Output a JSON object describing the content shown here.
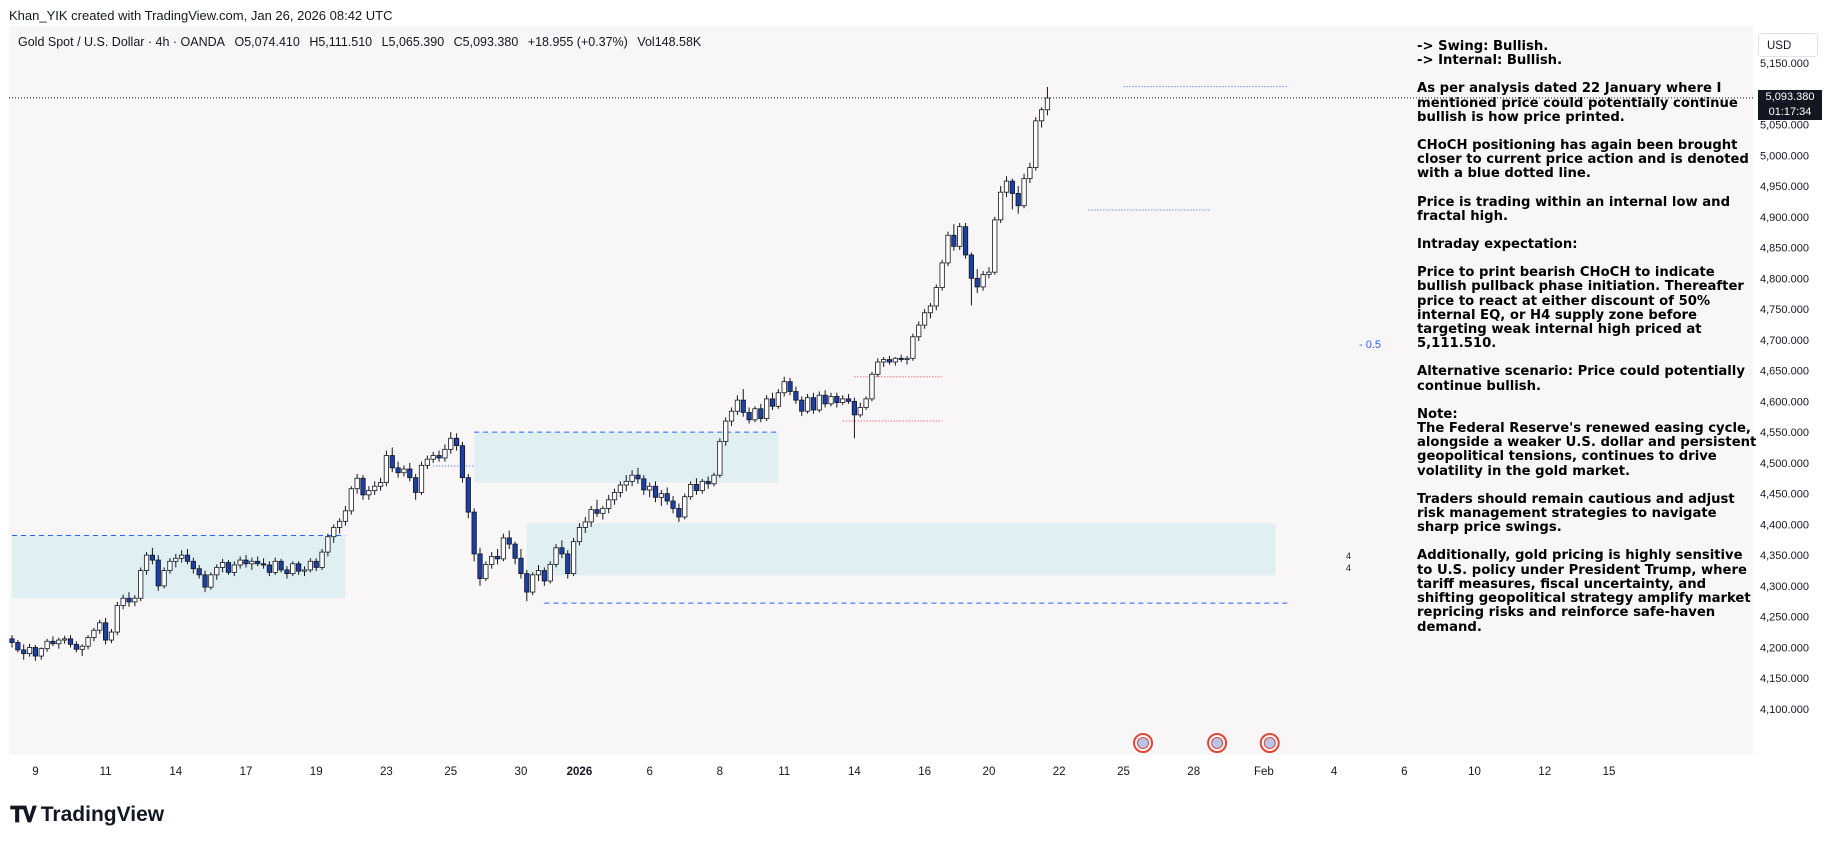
{
  "header": {
    "attribution": "Khan_YIK created with TradingView.com, Jan 26, 2026 08:42 UTC"
  },
  "symbol": {
    "name": "Gold Spot / U.S. Dollar · 4h · OANDA",
    "open": "O5,074.410",
    "high": "H5,111.510",
    "low": "L5,065.390",
    "close": "C5,093.380",
    "change": "+18.955 (+0.37%)",
    "volume": "Vol148.58K"
  },
  "currency_button": "USD",
  "last_price": {
    "price": "5,093.380",
    "countdown": "01:17:34"
  },
  "fib_label": "0.5",
  "zone_labels": [
    "4",
    "4"
  ],
  "notes": [
    "-> Swing:  Bullish.\n-> Internal:  Bullish.",
    "As per analysis dated 22 January where I mentioned price could potentially continue bullish is how price printed.",
    "CHoCH positioning has again been brought closer to current price action and is denoted with a blue dotted line.",
    "Price is trading within an internal low and fractal high.",
    "Intraday expectation:",
    "Price to print bearish CHoCH to indicate bullish pullback phase initiation.  Thereafter price to react at either discount of 50% internal EQ, or H4 supply zone before targeting weak internal high priced at 5,111.510.",
    "Alternative scenario:  Price could potentially continue bullish.",
    "Note:\nThe Federal Reserve's renewed easing cycle, alongside a weaker U.S. dollar and persistent geopolitical tensions, continues to drive volatility in the gold market.",
    "Traders should remain cautious and adjust risk management strategies to navigate sharp price swings.",
    "Additionally, gold pricing is highly sensitive to U.S. policy under President Trump, where tariff measures, fiscal uncertainty, and shifting geopolitical strategy amplify market repricing risks and reinforce safe-haven demand."
  ],
  "footer": {
    "brand": "TradingView"
  },
  "colors": {
    "bull": "#ffffff",
    "bear": "#1c3fa6",
    "wick": "#131722",
    "zone": "#dcedf1",
    "dashed": "#2962ff",
    "red_dotted": "#f23645",
    "background": "#f8f6f7"
  },
  "chart_data": {
    "type": "candlestick",
    "interval": "4h",
    "y_ticks": [
      4100,
      4150,
      4200,
      4250,
      4300,
      4350,
      4400,
      4450,
      4500,
      4550,
      4600,
      4650,
      4700,
      4750,
      4800,
      4850,
      4900,
      4950,
      5000,
      5050,
      5100,
      5150
    ],
    "y_tick_labels": [
      "4,100.000",
      "4,150.000",
      "4,200.000",
      "4,250.000",
      "4,300.000",
      "4,350.000",
      "4,400.000",
      "4,450.000",
      "4,500.000",
      "4,550.000",
      "4,600.000",
      "4,650.000",
      "4,700.000",
      "4,750.000",
      "4,800.000",
      "4,850.000",
      "4,900.000",
      "4,950.000",
      "5,000.000",
      "5,050.000",
      "5,100.000",
      "5,150.000"
    ],
    "ylim": [
      4075,
      5175
    ],
    "x_ticks": [
      {
        "label": "9",
        "bar": 4
      },
      {
        "label": "11",
        "bar": 16
      },
      {
        "label": "14",
        "bar": 28
      },
      {
        "label": "17",
        "bar": 40
      },
      {
        "label": "19",
        "bar": 52
      },
      {
        "label": "23",
        "bar": 64
      },
      {
        "label": "25",
        "bar": 75
      },
      {
        "label": "30",
        "bar": 87
      },
      {
        "label": "2026",
        "bar": 97
      },
      {
        "label": "6",
        "bar": 109
      },
      {
        "label": "8",
        "bar": 121
      },
      {
        "label": "11",
        "bar": 132
      },
      {
        "label": "14",
        "bar": 144
      },
      {
        "label": "16",
        "bar": 156
      },
      {
        "label": "20",
        "bar": 167
      },
      {
        "label": "22",
        "bar": 179
      },
      {
        "label": "25",
        "bar": 190
      },
      {
        "label": "28",
        "bar": 202
      },
      {
        "label": "Feb",
        "bar": 214
      },
      {
        "label": "4",
        "bar": 226
      },
      {
        "label": "6",
        "bar": 238
      },
      {
        "label": "10",
        "bar": 250
      },
      {
        "label": "12",
        "bar": 262
      },
      {
        "label": "15",
        "bar": 273
      }
    ],
    "last_price": 5093.38,
    "zones": [
      {
        "x0": 0,
        "x1": 57,
        "y0": 4280,
        "y1": 4382
      },
      {
        "x0": 79,
        "x1": 131,
        "y0": 4468,
        "y1": 4550
      },
      {
        "x0": 88,
        "x1": 216,
        "y0": 4317,
        "y1": 4402
      }
    ],
    "dashed_lines": [
      {
        "x0": 0,
        "x1": 57,
        "y": 4382
      },
      {
        "x0": 79,
        "x1": 131,
        "y": 4550
      },
      {
        "x0": 91,
        "x1": 218,
        "y": 4272
      }
    ],
    "choch_lines": [
      {
        "x0": 190,
        "x1": 218,
        "y": 5111.5
      },
      {
        "x0": 184,
        "x1": 205,
        "y": 4911
      },
      {
        "x0": 72,
        "x1": 79,
        "y": 4495
      }
    ],
    "red_lines": [
      {
        "x0": 144,
        "x1": 159,
        "y": 4640
      },
      {
        "x0": 142,
        "x1": 159,
        "y": 4568
      }
    ],
    "fib_level": 4693,
    "candles": [
      [
        4214,
        4220,
        4200,
        4208
      ],
      [
        4208,
        4212,
        4192,
        4196
      ],
      [
        4196,
        4205,
        4180,
        4190
      ],
      [
        4190,
        4206,
        4185,
        4200
      ],
      [
        4200,
        4204,
        4178,
        4186
      ],
      [
        4186,
        4200,
        4180,
        4198
      ],
      [
        4198,
        4214,
        4193,
        4210
      ],
      [
        4210,
        4218,
        4202,
        4206
      ],
      [
        4206,
        4216,
        4198,
        4212
      ],
      [
        4212,
        4219,
        4206,
        4214
      ],
      [
        4214,
        4220,
        4200,
        4205
      ],
      [
        4205,
        4210,
        4192,
        4197
      ],
      [
        4197,
        4205,
        4186,
        4202
      ],
      [
        4202,
        4220,
        4197,
        4216
      ],
      [
        4216,
        4232,
        4210,
        4228
      ],
      [
        4228,
        4245,
        4222,
        4240
      ],
      [
        4240,
        4248,
        4205,
        4212
      ],
      [
        4212,
        4230,
        4207,
        4225
      ],
      [
        4225,
        4274,
        4220,
        4268
      ],
      [
        4268,
        4286,
        4262,
        4280
      ],
      [
        4280,
        4290,
        4266,
        4274
      ],
      [
        4274,
        4285,
        4267,
        4280
      ],
      [
        4280,
        4330,
        4275,
        4325
      ],
      [
        4325,
        4355,
        4318,
        4350
      ],
      [
        4350,
        4362,
        4335,
        4342
      ],
      [
        4342,
        4350,
        4292,
        4300
      ],
      [
        4300,
        4330,
        4296,
        4325
      ],
      [
        4325,
        4345,
        4320,
        4340
      ],
      [
        4340,
        4352,
        4330,
        4345
      ],
      [
        4345,
        4358,
        4338,
        4350
      ],
      [
        4350,
        4360,
        4335,
        4340
      ],
      [
        4340,
        4346,
        4320,
        4328
      ],
      [
        4328,
        4334,
        4312,
        4318
      ],
      [
        4318,
        4325,
        4290,
        4298
      ],
      [
        4298,
        4322,
        4294,
        4318
      ],
      [
        4318,
        4335,
        4310,
        4330
      ],
      [
        4330,
        4344,
        4322,
        4338
      ],
      [
        4338,
        4342,
        4318,
        4322
      ],
      [
        4322,
        4340,
        4316,
        4334
      ],
      [
        4334,
        4348,
        4328,
        4342
      ],
      [
        4342,
        4350,
        4330,
        4336
      ],
      [
        4336,
        4346,
        4326,
        4340
      ],
      [
        4340,
        4348,
        4332,
        4336
      ],
      [
        4336,
        4345,
        4328,
        4334
      ],
      [
        4334,
        4340,
        4316,
        4322
      ],
      [
        4322,
        4346,
        4318,
        4340
      ],
      [
        4340,
        4344,
        4322,
        4326
      ],
      [
        4326,
        4332,
        4312,
        4320
      ],
      [
        4320,
        4340,
        4316,
        4336
      ],
      [
        4336,
        4340,
        4318,
        4324
      ],
      [
        4324,
        4332,
        4316,
        4326
      ],
      [
        4326,
        4345,
        4322,
        4340
      ],
      [
        4340,
        4345,
        4324,
        4330
      ],
      [
        4330,
        4360,
        4326,
        4355
      ],
      [
        4355,
        4385,
        4348,
        4380
      ],
      [
        4380,
        4400,
        4370,
        4395
      ],
      [
        4395,
        4410,
        4385,
        4405
      ],
      [
        4405,
        4430,
        4398,
        4422
      ],
      [
        4422,
        4462,
        4416,
        4458
      ],
      [
        4458,
        4482,
        4450,
        4475
      ],
      [
        4475,
        4480,
        4440,
        4448
      ],
      [
        4448,
        4462,
        4440,
        4455
      ],
      [
        4455,
        4470,
        4448,
        4462
      ],
      [
        4462,
        4476,
        4455,
        4468
      ],
      [
        4468,
        4520,
        4462,
        4512
      ],
      [
        4512,
        4525,
        4485,
        4492
      ],
      [
        4492,
        4502,
        4476,
        4484
      ],
      [
        4484,
        4496,
        4478,
        4490
      ],
      [
        4490,
        4500,
        4470,
        4476
      ],
      [
        4476,
        4482,
        4440,
        4452
      ],
      [
        4452,
        4502,
        4448,
        4496
      ],
      [
        4496,
        4512,
        4490,
        4506
      ],
      [
        4506,
        4518,
        4500,
        4512
      ],
      [
        4512,
        4520,
        4502,
        4508
      ],
      [
        4508,
        4530,
        4502,
        4522
      ],
      [
        4522,
        4550,
        4515,
        4540
      ],
      [
        4540,
        4548,
        4520,
        4528
      ],
      [
        4528,
        4534,
        4468,
        4476
      ],
      [
        4476,
        4482,
        4410,
        4420
      ],
      [
        4420,
        4426,
        4340,
        4352
      ],
      [
        4352,
        4362,
        4300,
        4312
      ],
      [
        4312,
        4340,
        4308,
        4335
      ],
      [
        4335,
        4355,
        4328,
        4348
      ],
      [
        4348,
        4360,
        4335,
        4344
      ],
      [
        4344,
        4385,
        4340,
        4378
      ],
      [
        4378,
        4390,
        4360,
        4368
      ],
      [
        4368,
        4372,
        4335,
        4345
      ],
      [
        4345,
        4360,
        4312,
        4320
      ],
      [
        4320,
        4326,
        4275,
        4290
      ],
      [
        4290,
        4322,
        4285,
        4318
      ],
      [
        4318,
        4334,
        4308,
        4325
      ],
      [
        4325,
        4330,
        4300,
        4308
      ],
      [
        4308,
        4340,
        4304,
        4335
      ],
      [
        4335,
        4368,
        4330,
        4362
      ],
      [
        4362,
        4374,
        4345,
        4352
      ],
      [
        4352,
        4358,
        4312,
        4320
      ],
      [
        4320,
        4378,
        4316,
        4372
      ],
      [
        4372,
        4402,
        4366,
        4395
      ],
      [
        4395,
        4412,
        4386,
        4404
      ],
      [
        4404,
        4430,
        4396,
        4424
      ],
      [
        4424,
        4440,
        4412,
        4418
      ],
      [
        4418,
        4430,
        4408,
        4426
      ],
      [
        4426,
        4448,
        4418,
        4440
      ],
      [
        4440,
        4458,
        4432,
        4452
      ],
      [
        4452,
        4470,
        4444,
        4464
      ],
      [
        4464,
        4480,
        4454,
        4470
      ],
      [
        4470,
        4488,
        4462,
        4480
      ],
      [
        4480,
        4492,
        4466,
        4474
      ],
      [
        4474,
        4480,
        4448,
        4456
      ],
      [
        4456,
        4468,
        4444,
        4462
      ],
      [
        4462,
        4470,
        4436,
        4444
      ],
      [
        4444,
        4456,
        4430,
        4450
      ],
      [
        4450,
        4460,
        4432,
        4438
      ],
      [
        4438,
        4446,
        4418,
        4426
      ],
      [
        4426,
        4434,
        4404,
        4412
      ],
      [
        4412,
        4450,
        4408,
        4445
      ],
      [
        4445,
        4470,
        4440,
        4465
      ],
      [
        4465,
        4475,
        4448,
        4455
      ],
      [
        4455,
        4474,
        4450,
        4470
      ],
      [
        4470,
        4478,
        4458,
        4466
      ],
      [
        4466,
        4484,
        4462,
        4480
      ],
      [
        4480,
        4540,
        4476,
        4535
      ],
      [
        4535,
        4574,
        4528,
        4568
      ],
      [
        4568,
        4590,
        4560,
        4584
      ],
      [
        4584,
        4610,
        4578,
        4602
      ],
      [
        4602,
        4620,
        4575,
        4582
      ],
      [
        4582,
        4590,
        4564,
        4570
      ],
      [
        4570,
        4592,
        4566,
        4588
      ],
      [
        4588,
        4596,
        4566,
        4572
      ],
      [
        4572,
        4610,
        4568,
        4604
      ],
      [
        4604,
        4614,
        4586,
        4592
      ],
      [
        4592,
        4620,
        4588,
        4614
      ],
      [
        4614,
        4640,
        4608,
        4632
      ],
      [
        4632,
        4638,
        4610,
        4616
      ],
      [
        4616,
        4624,
        4596,
        4602
      ],
      [
        4602,
        4608,
        4576,
        4584
      ],
      [
        4584,
        4612,
        4580,
        4606
      ],
      [
        4606,
        4614,
        4580,
        4586
      ],
      [
        4586,
        4616,
        4582,
        4610
      ],
      [
        4610,
        4618,
        4590,
        4596
      ],
      [
        4596,
        4614,
        4592,
        4608
      ],
      [
        4608,
        4614,
        4590,
        4598
      ],
      [
        4598,
        4610,
        4594,
        4604
      ],
      [
        4604,
        4612,
        4596,
        4600
      ],
      [
        4600,
        4606,
        4540,
        4578
      ],
      [
        4578,
        4598,
        4574,
        4590
      ],
      [
        4590,
        4608,
        4586,
        4604
      ],
      [
        4604,
        4648,
        4600,
        4644
      ],
      [
        4644,
        4670,
        4640,
        4664
      ],
      [
        4664,
        4672,
        4656,
        4668
      ],
      [
        4668,
        4674,
        4660,
        4664
      ],
      [
        4664,
        4672,
        4658,
        4670
      ],
      [
        4670,
        4676,
        4664,
        4668
      ],
      [
        4668,
        4674,
        4660,
        4670
      ],
      [
        4670,
        4710,
        4666,
        4705
      ],
      [
        4705,
        4730,
        4698,
        4724
      ],
      [
        4724,
        4750,
        4718,
        4744
      ],
      [
        4744,
        4760,
        4735,
        4755
      ],
      [
        4755,
        4790,
        4748,
        4785
      ],
      [
        4785,
        4830,
        4780,
        4825
      ],
      [
        4825,
        4876,
        4820,
        4870
      ],
      [
        4870,
        4888,
        4845,
        4852
      ],
      [
        4852,
        4890,
        4846,
        4884
      ],
      [
        4884,
        4890,
        4832,
        4838
      ],
      [
        4838,
        4842,
        4756,
        4800
      ],
      [
        4800,
        4815,
        4776,
        4786
      ],
      [
        4786,
        4812,
        4780,
        4806
      ],
      [
        4806,
        4818,
        4800,
        4810
      ],
      [
        4810,
        4900,
        4806,
        4895
      ],
      [
        4895,
        4950,
        4890,
        4940
      ],
      [
        4940,
        4966,
        4932,
        4958
      ],
      [
        4958,
        4962,
        4912,
        4938
      ],
      [
        4938,
        4950,
        4905,
        4918
      ],
      [
        4918,
        4970,
        4914,
        4962
      ],
      [
        4962,
        4988,
        4955,
        4980
      ],
      [
        4980,
        5062,
        4975,
        5056
      ],
      [
        5056,
        5078,
        5045,
        5074
      ],
      [
        5074,
        5111,
        5065,
        5093
      ]
    ]
  }
}
